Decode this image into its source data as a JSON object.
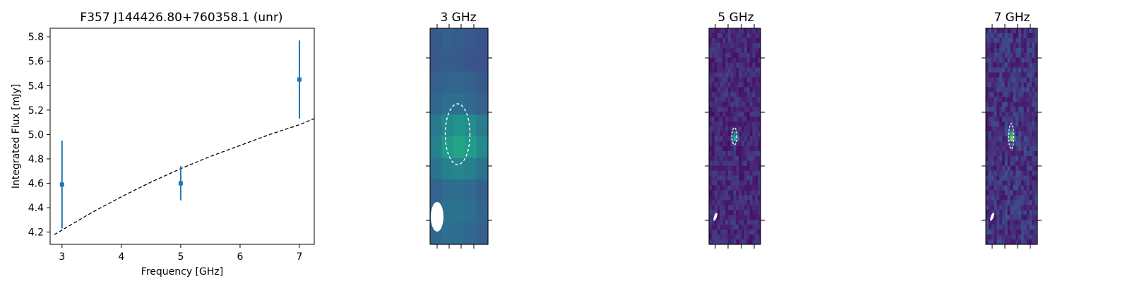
{
  "chart_data": [
    {
      "type": "scatter",
      "title": "F357 J144426.80+760358.1 (unr)",
      "xlabel": "Frequency [GHz]",
      "ylabel": "Integrated Flux [mJy]",
      "xlim": [
        2.8,
        7.25
      ],
      "ylim": [
        4.1,
        5.87
      ],
      "xticks": [
        3,
        4,
        5,
        6,
        7
      ],
      "yticks": [
        4.2,
        4.4,
        4.6,
        4.8,
        5.0,
        5.2,
        5.4,
        5.6,
        5.8
      ],
      "series": [
        {
          "kind": "errorbar",
          "color": "#1f77b4",
          "x": [
            3,
            5,
            7
          ],
          "y": [
            4.59,
            4.6,
            5.45
          ],
          "yerr": [
            0.36,
            0.14,
            0.32
          ]
        },
        {
          "kind": "model",
          "color": "#000000",
          "linestyle": "dashed",
          "x": [
            2.87,
            3.5,
            4.0,
            4.5,
            5.0,
            5.5,
            6.0,
            6.5,
            7.0,
            7.25
          ],
          "y": [
            4.18,
            4.36,
            4.49,
            4.61,
            4.72,
            4.82,
            4.91,
            5.0,
            5.08,
            5.13
          ]
        }
      ],
      "grid": false,
      "legend": "none"
    },
    {
      "type": "heatmap",
      "title": "3 GHz",
      "colormap": "viridis",
      "grid": [
        [
          0.28,
          0.3,
          0.29,
          0.27,
          0.26
        ],
        [
          0.27,
          0.29,
          0.28,
          0.26,
          0.25
        ],
        [
          0.3,
          0.32,
          0.33,
          0.31,
          0.28
        ],
        [
          0.33,
          0.36,
          0.37,
          0.34,
          0.31
        ],
        [
          0.4,
          0.48,
          0.52,
          0.49,
          0.42
        ],
        [
          0.44,
          0.54,
          0.58,
          0.55,
          0.47
        ],
        [
          0.38,
          0.44,
          0.46,
          0.43,
          0.37
        ],
        [
          0.32,
          0.35,
          0.36,
          0.34,
          0.3
        ],
        [
          0.34,
          0.37,
          0.38,
          0.36,
          0.32
        ],
        [
          0.33,
          0.36,
          0.35,
          0.33,
          0.3
        ]
      ],
      "source_ellipse": "dashed white",
      "beam": "filled white"
    },
    {
      "type": "heatmap",
      "title": "5 GHz",
      "colormap": "viridis",
      "source_ellipse": "dashed white",
      "beam": "filled white"
    },
    {
      "type": "heatmap",
      "title": "7 GHz",
      "colormap": "viridis",
      "source_ellipse": "dashed white",
      "beam": "filled white"
    }
  ]
}
